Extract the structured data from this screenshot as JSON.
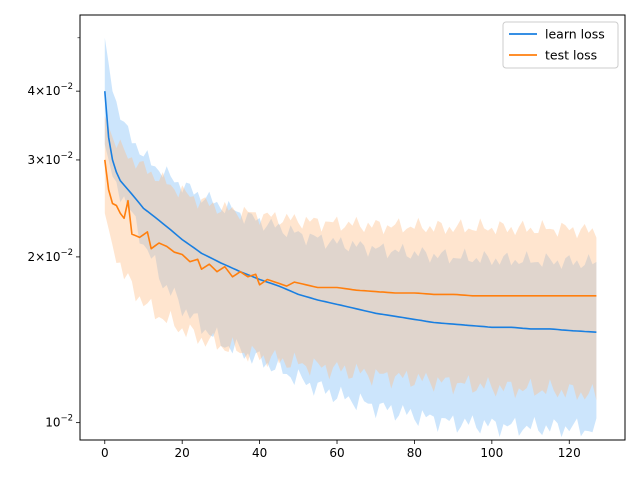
{
  "chart_data": {
    "type": "line",
    "title": "",
    "xlabel": "",
    "ylabel": "",
    "xlim": [
      -6.4,
      134.4
    ],
    "ylim": [
      0.0093,
      0.055
    ],
    "yscale": "log",
    "grid": false,
    "legend_position": "top-right",
    "x_ticks": [
      0,
      20,
      40,
      60,
      80,
      100,
      120
    ],
    "x_tick_labels": [
      "0",
      "20",
      "40",
      "60",
      "80",
      "100",
      "120"
    ],
    "y_major_ticks": [
      {
        "value": 0.01,
        "mantissa": "",
        "base": "10",
        "exponent": "−2"
      },
      {
        "value": 0.02,
        "mantissa": "2",
        "base": "10",
        "exponent": "−2"
      },
      {
        "value": 0.03,
        "mantissa": "3",
        "base": "10",
        "exponent": "−2"
      },
      {
        "value": 0.04,
        "mantissa": "4",
        "base": "10",
        "exponent": "−2"
      }
    ],
    "y_minor_ticks": [
      0.05
    ],
    "series": [
      {
        "name": "learn loss",
        "color": "#1a7fe0",
        "band_color": "#7fbff7",
        "x_count": 128,
        "mean_points": [
          [
            0,
            0.04
          ],
          [
            1,
            0.033
          ],
          [
            2,
            0.03
          ],
          [
            3,
            0.0285
          ],
          [
            4,
            0.0275
          ],
          [
            5,
            0.027
          ],
          [
            6,
            0.0265
          ],
          [
            8,
            0.0255
          ],
          [
            10,
            0.0245
          ],
          [
            15,
            0.023
          ],
          [
            20,
            0.0215
          ],
          [
            25,
            0.0203
          ],
          [
            30,
            0.0195
          ],
          [
            35,
            0.0188
          ],
          [
            40,
            0.0182
          ],
          [
            45,
            0.0177
          ],
          [
            50,
            0.0171
          ],
          [
            55,
            0.0167
          ],
          [
            60,
            0.0164
          ],
          [
            65,
            0.0161
          ],
          [
            70,
            0.0158
          ],
          [
            75,
            0.0156
          ],
          [
            80,
            0.0154
          ],
          [
            85,
            0.0152
          ],
          [
            90,
            0.0151
          ],
          [
            95,
            0.015
          ],
          [
            100,
            0.0149
          ],
          [
            105,
            0.0149
          ],
          [
            110,
            0.0148
          ],
          [
            115,
            0.0148
          ],
          [
            120,
            0.0147
          ],
          [
            127,
            0.0146
          ]
        ],
        "upper_points": [
          [
            0,
            0.05
          ],
          [
            2,
            0.04
          ],
          [
            5,
            0.0345
          ],
          [
            10,
            0.0305
          ],
          [
            15,
            0.0285
          ],
          [
            20,
            0.027
          ],
          [
            25,
            0.0258
          ],
          [
            30,
            0.0248
          ],
          [
            40,
            0.0232
          ],
          [
            50,
            0.022
          ],
          [
            60,
            0.0212
          ],
          [
            70,
            0.0207
          ],
          [
            80,
            0.0203
          ],
          [
            90,
            0.02
          ],
          [
            100,
            0.0198
          ],
          [
            110,
            0.0197
          ],
          [
            120,
            0.0196
          ],
          [
            127,
            0.0195
          ]
        ],
        "lower_points": [
          [
            0,
            0.032
          ],
          [
            2,
            0.028
          ],
          [
            5,
            0.0255
          ],
          [
            10,
            0.0212
          ],
          [
            15,
            0.018
          ],
          [
            20,
            0.0162
          ],
          [
            25,
            0.015
          ],
          [
            30,
            0.014
          ],
          [
            40,
            0.013
          ],
          [
            50,
            0.012
          ],
          [
            60,
            0.0112
          ],
          [
            70,
            0.0107
          ],
          [
            80,
            0.0103
          ],
          [
            90,
            0.01
          ],
          [
            100,
            0.0099
          ],
          [
            110,
            0.0098
          ],
          [
            120,
            0.0098
          ],
          [
            127,
            0.0097
          ]
        ]
      },
      {
        "name": "test loss",
        "color": "#ff7f0e",
        "band_color": "#ffbf86",
        "x_count": 128,
        "mean_points": [
          [
            0,
            0.03
          ],
          [
            1,
            0.0265
          ],
          [
            2,
            0.025
          ],
          [
            3,
            0.0248
          ],
          [
            4,
            0.024
          ],
          [
            5,
            0.0235
          ],
          [
            6,
            0.0253
          ],
          [
            7,
            0.022
          ],
          [
            9,
            0.0217
          ],
          [
            11,
            0.0222
          ],
          [
            12,
            0.0207
          ],
          [
            14,
            0.0212
          ],
          [
            16,
            0.0209
          ],
          [
            18,
            0.0204
          ],
          [
            20,
            0.0202
          ],
          [
            22,
            0.0196
          ],
          [
            24,
            0.0198
          ],
          [
            25,
            0.019
          ],
          [
            27,
            0.0194
          ],
          [
            29,
            0.0188
          ],
          [
            31,
            0.0192
          ],
          [
            33,
            0.0184
          ],
          [
            35,
            0.0188
          ],
          [
            37,
            0.0184
          ],
          [
            39,
            0.0186
          ],
          [
            40,
            0.0178
          ],
          [
            42,
            0.0182
          ],
          [
            45,
            0.0179
          ],
          [
            47,
            0.0177
          ],
          [
            49,
            0.018
          ],
          [
            52,
            0.0178
          ],
          [
            55,
            0.0176
          ],
          [
            60,
            0.0176
          ],
          [
            65,
            0.0174
          ],
          [
            70,
            0.0173
          ],
          [
            75,
            0.0172
          ],
          [
            80,
            0.0172
          ],
          [
            85,
            0.0171
          ],
          [
            90,
            0.0171
          ],
          [
            95,
            0.017
          ],
          [
            100,
            0.017
          ],
          [
            105,
            0.017
          ],
          [
            110,
            0.017
          ],
          [
            115,
            0.017
          ],
          [
            120,
            0.017
          ],
          [
            127,
            0.017
          ]
        ],
        "upper_points": [
          [
            0,
            0.036
          ],
          [
            2,
            0.033
          ],
          [
            5,
            0.031
          ],
          [
            10,
            0.029
          ],
          [
            15,
            0.0275
          ],
          [
            20,
            0.0262
          ],
          [
            25,
            0.0252
          ],
          [
            30,
            0.0245
          ],
          [
            40,
            0.0238
          ],
          [
            50,
            0.0233
          ],
          [
            60,
            0.023
          ],
          [
            70,
            0.0228
          ],
          [
            80,
            0.0227
          ],
          [
            90,
            0.0226
          ],
          [
            100,
            0.0226
          ],
          [
            110,
            0.0225
          ],
          [
            120,
            0.0225
          ],
          [
            127,
            0.0222
          ]
        ],
        "lower_points": [
          [
            0,
            0.024
          ],
          [
            2,
            0.021
          ],
          [
            5,
            0.0185
          ],
          [
            10,
            0.0165
          ],
          [
            15,
            0.0155
          ],
          [
            20,
            0.0148
          ],
          [
            25,
            0.0142
          ],
          [
            30,
            0.0138
          ],
          [
            40,
            0.0132
          ],
          [
            50,
            0.0128
          ],
          [
            60,
            0.0125
          ],
          [
            70,
            0.0122
          ],
          [
            80,
            0.012
          ],
          [
            90,
            0.0118
          ],
          [
            100,
            0.0116
          ],
          [
            110,
            0.0115
          ],
          [
            120,
            0.0114
          ],
          [
            127,
            0.0112
          ]
        ]
      }
    ]
  }
}
